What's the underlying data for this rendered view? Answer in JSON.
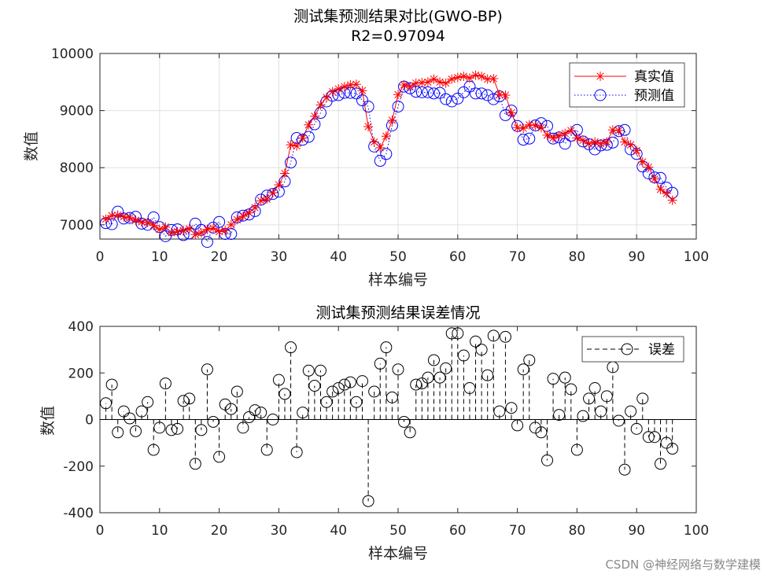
{
  "watermark": "CSDN @神经网络与数学建模",
  "chart_data": [
    {
      "type": "line",
      "title": "测试集预测结果对比(GWO-BP)",
      "subtitle": "R2=0.97094",
      "xlabel": "样本编号",
      "ylabel": "数值",
      "xlim": [
        0,
        100
      ],
      "ylim": [
        6750,
        10000
      ],
      "xticks": [
        "0",
        "10",
        "20",
        "30",
        "40",
        "50",
        "60",
        "70",
        "80",
        "90",
        "100"
      ],
      "yticks": [
        "7000",
        "8000",
        "9000",
        "10000"
      ],
      "grid": true,
      "legend_position": "top-right",
      "series": [
        {
          "name": "真实值",
          "color": "#ff0000",
          "values": [
            7100,
            7160,
            7170,
            7140,
            7120,
            7080,
            7050,
            7040,
            6990,
            6920,
            6960,
            6860,
            6880,
            6900,
            6930,
            6830,
            6860,
            6920,
            6940,
            6880,
            6900,
            7000,
            7090,
            7150,
            7210,
            7300,
            7420,
            7450,
            7560,
            7700,
            7900,
            8400,
            8380,
            8520,
            8750,
            8900,
            9100,
            9230,
            9330,
            9380,
            9420,
            9450,
            9460,
            9350,
            8720,
            8450,
            8350,
            8550,
            8830,
            9280,
            9450,
            9420,
            9480,
            9490,
            9500,
            9550,
            9500,
            9480,
            9550,
            9580,
            9600,
            9570,
            9620,
            9600,
            9550,
            9560,
            9280,
            9270,
            8960,
            8700,
            8690,
            8750,
            8740,
            8700,
            8570,
            8520,
            8560,
            8600,
            8650,
            8520,
            8480,
            8420,
            8450,
            8420,
            8450,
            8660,
            8650,
            8450,
            8400,
            8300,
            8100,
            8010,
            7800,
            7620,
            7550,
            7430
          ]
        },
        {
          "name": "预测值",
          "color": "#0000ff",
          "values": [
            7030,
            7010,
            7230,
            7110,
            7120,
            7140,
            7020,
            7000,
            7130,
            6960,
            6800,
            6910,
            6920,
            6820,
            6850,
            7020,
            6910,
            6700,
            6950,
            7050,
            6840,
            6840,
            7130,
            7160,
            7180,
            7240,
            7440,
            7510,
            7540,
            7580,
            7760,
            8090,
            8520,
            8490,
            8540,
            8760,
            8960,
            9160,
            9260,
            9270,
            9310,
            9310,
            9300,
            9180,
            9070,
            8370,
            8120,
            8240,
            8740,
            9070,
            9420,
            9390,
            9330,
            9320,
            9320,
            9300,
            9310,
            9200,
            9160,
            9210,
            9320,
            9420,
            9300,
            9300,
            9270,
            9200,
            9250,
            8920,
            9000,
            8730,
            8490,
            8510,
            8740,
            8780,
            8730,
            8510,
            8530,
            8420,
            8560,
            8660,
            8460,
            8410,
            8320,
            8390,
            8400,
            8440,
            8640,
            8660,
            8320,
            8240,
            8020,
            7900,
            7830,
            7820,
            7650,
            7560
          ]
        }
      ]
    },
    {
      "type": "stem",
      "title": "测试集预测结果误差情况",
      "xlabel": "样本编号",
      "ylabel": "数值",
      "xlim": [
        0,
        100
      ],
      "ylim": [
        -400,
        400
      ],
      "xticks": [
        "0",
        "10",
        "20",
        "30",
        "40",
        "50",
        "60",
        "70",
        "80",
        "90",
        "100"
      ],
      "yticks": [
        "-400",
        "-200",
        "0",
        "200",
        "400"
      ],
      "grid": false,
      "legend_position": "top-right",
      "series": [
        {
          "name": "误差",
          "color": "#000000",
          "values": [
            70,
            150,
            -55,
            35,
            5,
            -50,
            35,
            75,
            -130,
            -35,
            155,
            -45,
            -40,
            80,
            90,
            -190,
            -45,
            215,
            -10,
            -160,
            65,
            45,
            120,
            -35,
            10,
            40,
            30,
            -130,
            0,
            170,
            110,
            310,
            -140,
            30,
            210,
            145,
            210,
            75,
            120,
            135,
            150,
            160,
            75,
            165,
            -350,
            120,
            240,
            310,
            95,
            215,
            -10,
            -55,
            150,
            155,
            180,
            255,
            180,
            220,
            370,
            370,
            275,
            135,
            335,
            300,
            190,
            360,
            35,
            355,
            50,
            -25,
            215,
            255,
            -35,
            -55,
            -175,
            175,
            20,
            180,
            130,
            -130,
            15,
            90,
            135,
            35,
            100,
            225,
            -5,
            -215,
            35,
            -40,
            90,
            -75,
            -75,
            -190,
            -100,
            -125
          ]
        }
      ]
    }
  ]
}
